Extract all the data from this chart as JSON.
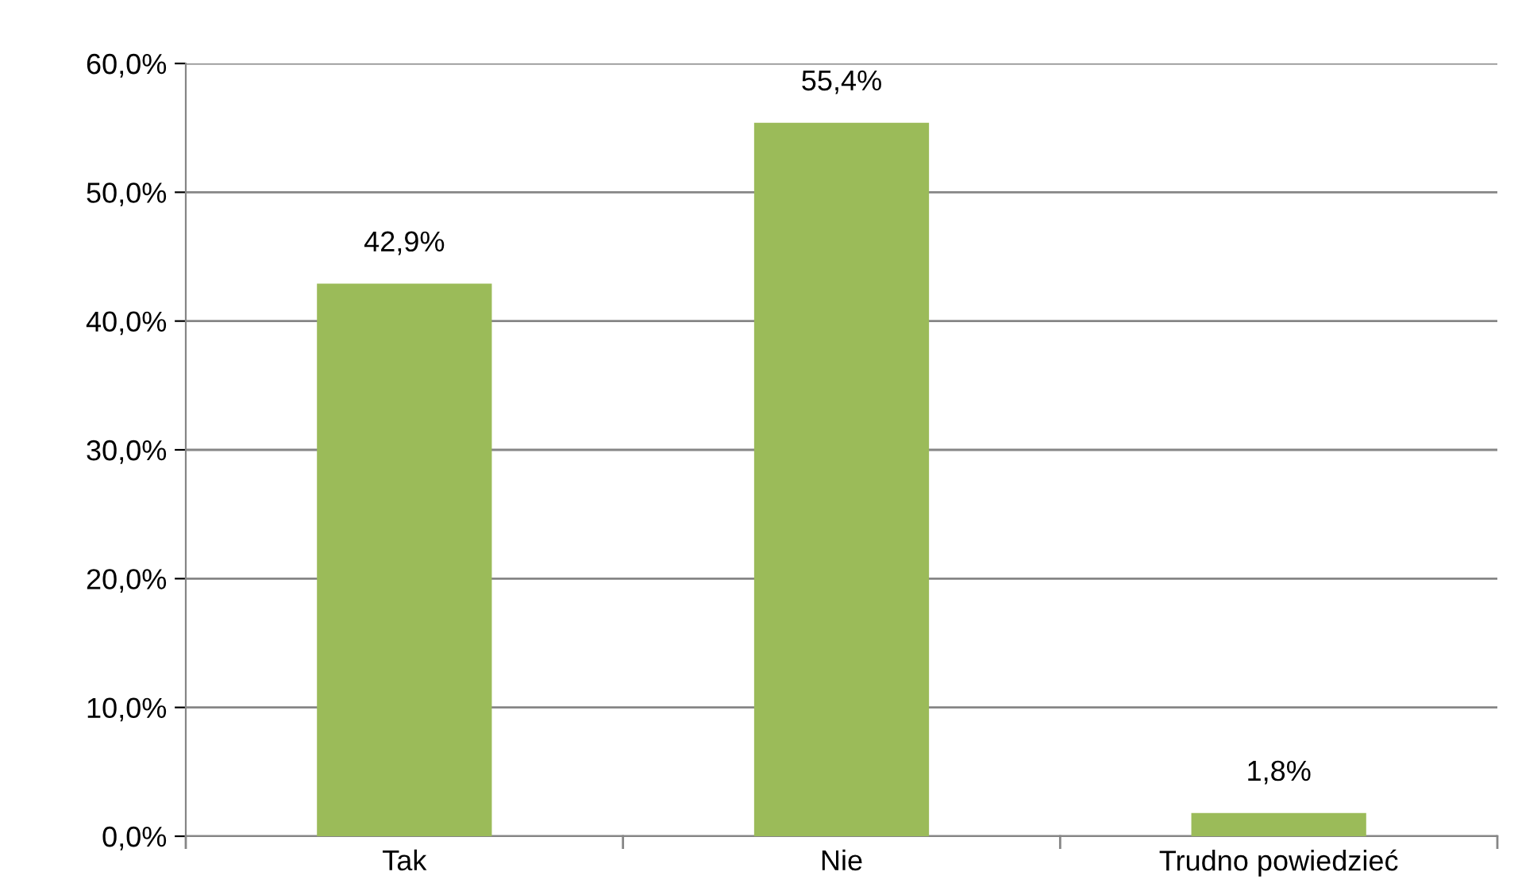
{
  "chart_data": {
    "type": "bar",
    "categories": [
      "Tak",
      "Nie",
      "Trudno powiedzieć"
    ],
    "values": [
      42.9,
      55.4,
      1.8
    ],
    "value_labels": [
      "42,9%",
      "55,4%",
      "1,8%"
    ],
    "color": "#9bbb59",
    "ylim": [
      0,
      60
    ],
    "yticks": [
      {
        "value": 0,
        "label": "0,0%"
      },
      {
        "value": 10,
        "label": "10,0%"
      },
      {
        "value": 20,
        "label": "20,0%"
      },
      {
        "value": 30,
        "label": "30,0%"
      },
      {
        "value": 40,
        "label": "40,0%"
      },
      {
        "value": 50,
        "label": "50,0%"
      },
      {
        "value": 60,
        "label": "60,0%"
      }
    ],
    "grid": "y",
    "legend": false
  }
}
